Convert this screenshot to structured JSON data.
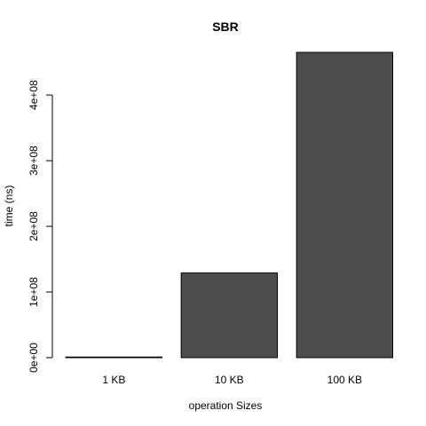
{
  "chart_data": {
    "type": "bar",
    "title": "SBR",
    "xlabel": "operation Sizes",
    "ylabel": "time (ns)",
    "categories": [
      "1 KB",
      "10 KB",
      "100 KB"
    ],
    "values": [
      1000000,
      129000000,
      465000000
    ],
    "ylim": [
      0,
      465000000
    ],
    "yticks": [
      0,
      100000000,
      200000000,
      300000000,
      400000000
    ],
    "ytick_labels": [
      "0e+00",
      "1e+08",
      "2e+08",
      "3e+08",
      "4e+08"
    ],
    "bar_color": "#4d4d4d",
    "grid": false,
    "legend": "none"
  }
}
